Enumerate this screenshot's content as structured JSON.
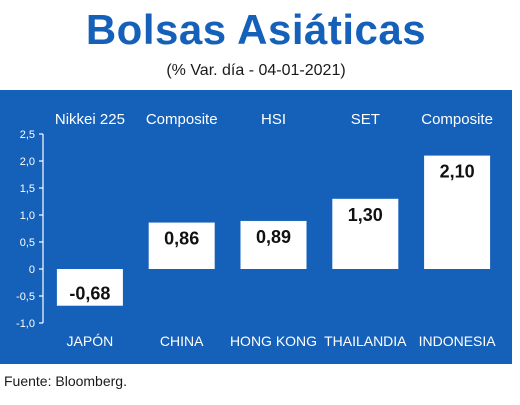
{
  "title": "Bolsas Asiáticas",
  "subtitle": "(% Var. día - 04-01-2021)",
  "source": "Fuente: Bloomberg.",
  "colors": {
    "background": "#1560b8",
    "bar": "#ffffff",
    "text": "#ffffff",
    "value_text": "#111111"
  },
  "chart_data": {
    "type": "bar",
    "categories": [
      "JAPÓN",
      "CHINA",
      "HONG KONG",
      "THAILANDIA",
      "INDONESIA"
    ],
    "index_names": [
      "Nikkei 225",
      "Composite",
      "HSI",
      "SET",
      "Composite"
    ],
    "values": [
      -0.68,
      0.86,
      0.89,
      1.3,
      2.1
    ],
    "value_labels": [
      "-0,68",
      "0,86",
      "0,89",
      "1,30",
      "2,10"
    ],
    "ylim": [
      -1.0,
      2.5
    ],
    "yticks": [
      -1.0,
      -0.5,
      0,
      0.5,
      1.0,
      1.5,
      2.0,
      2.5
    ],
    "ytick_labels": [
      "-1,0",
      "-0,5",
      "0",
      "0,5",
      "1,0",
      "1,5",
      "2,0",
      "2,5"
    ],
    "grid": false,
    "legend": "none"
  }
}
